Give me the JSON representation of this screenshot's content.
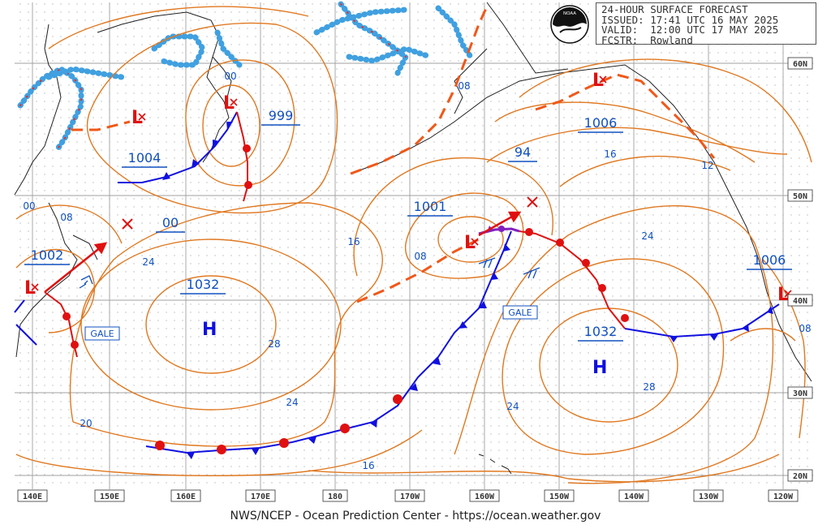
{
  "header": {
    "title": "24-HOUR SURFACE FORECAST",
    "issued": "ISSUED: 17:41 UTC 16 MAY 2025",
    "valid": "VALID:  12:00 UTC 17 MAY 2025",
    "forecaster": "FCSTR:  Rowland"
  },
  "logo": {
    "name": "noaa-logo",
    "text": "NOAA"
  },
  "footer": {
    "text": "NWS/NCEP - Ocean Prediction Center - https://ocean.weather.gov"
  },
  "lat_labels": [
    "60N",
    "50N",
    "40N",
    "30N",
    "20N"
  ],
  "lon_labels": [
    "140E",
    "150E",
    "160E",
    "170E",
    "180",
    "170W",
    "160W",
    "150W",
    "140W",
    "130W",
    "120W"
  ],
  "pressure_labels": [
    "1004",
    "999",
    "1002",
    "00",
    "1032",
    "1001",
    "1006",
    "94",
    "1032",
    "1006"
  ],
  "high_labels": [
    "H",
    "H"
  ],
  "low_labels": [
    "L",
    "L",
    "L",
    "L",
    "L",
    "L"
  ],
  "isobar_values": [
    "00",
    "00",
    "08",
    "24",
    "28",
    "24",
    "20",
    "16",
    "16",
    "08",
    "24",
    "28",
    "24",
    "16",
    "12",
    "08",
    "08"
  ],
  "gale_labels": [
    "GALE",
    "GALE"
  ],
  "colors": {
    "isobar": "#e07820",
    "cold_front": "#1010e0",
    "warm_front": "#e01010",
    "occluded_front": "#8020c0",
    "trough": "#f05818",
    "label": "#1050c0",
    "ice": "#40a0e0",
    "grid": "#9a9a9a"
  }
}
